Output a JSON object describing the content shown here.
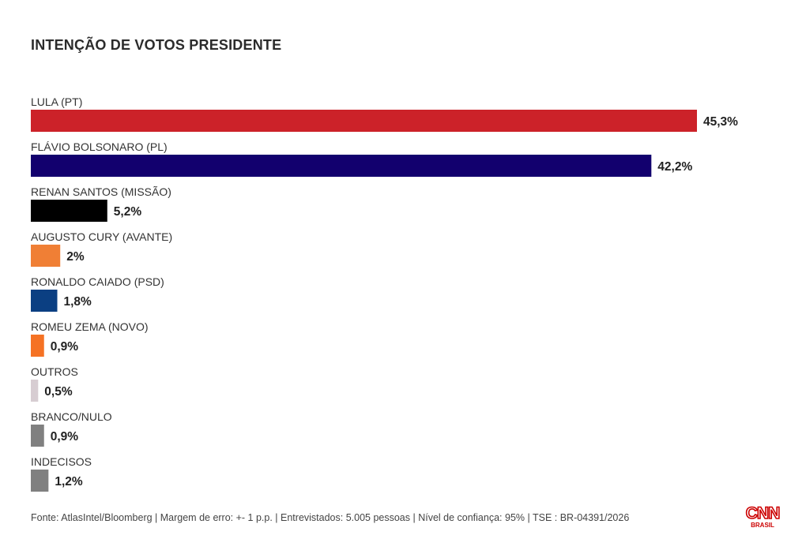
{
  "chart_data": {
    "type": "bar",
    "orientation": "horizontal",
    "title": "INTENÇÃO DE VOTOS PRESIDENTE",
    "categories": [
      "LULA (PT)",
      "FLÁVIO BOLSONARO (PL)",
      "RENAN SANTOS (MISSÃO)",
      "AUGUSTO CURY (AVANTE)",
      "RONALDO CAIADO (PSD)",
      "ROMEU ZEMA (NOVO)",
      "OUTROS",
      "BRANCO/NULO",
      "INDECISOS"
    ],
    "values": [
      45.3,
      42.2,
      5.2,
      2,
      1.8,
      0.9,
      0.5,
      0.9,
      1.2
    ],
    "value_labels": [
      "45,3%",
      "42,2%",
      "5,2%",
      "2%",
      "1,8%",
      "0,9%",
      "0,5%",
      "0,9%",
      "1,2%"
    ],
    "colors": [
      "#cc2229",
      "#12006e",
      "#000000",
      "#f07f35",
      "#0b3f82",
      "#f57224",
      "#d7cdd2",
      "#808080",
      "#808080"
    ],
    "grid": false,
    "legend": "none"
  },
  "footer": {
    "source": "Fonte: AtlasIntel/Bloomberg | Margem de erro: +- 1 p.p. | Entrevistados: 5.005 pessoas | Nível de confiança: 95% | TSE : BR-04391/2026"
  },
  "logo": {
    "text": "CNN",
    "subtext": "BRASIL",
    "color": "#cc0000"
  }
}
